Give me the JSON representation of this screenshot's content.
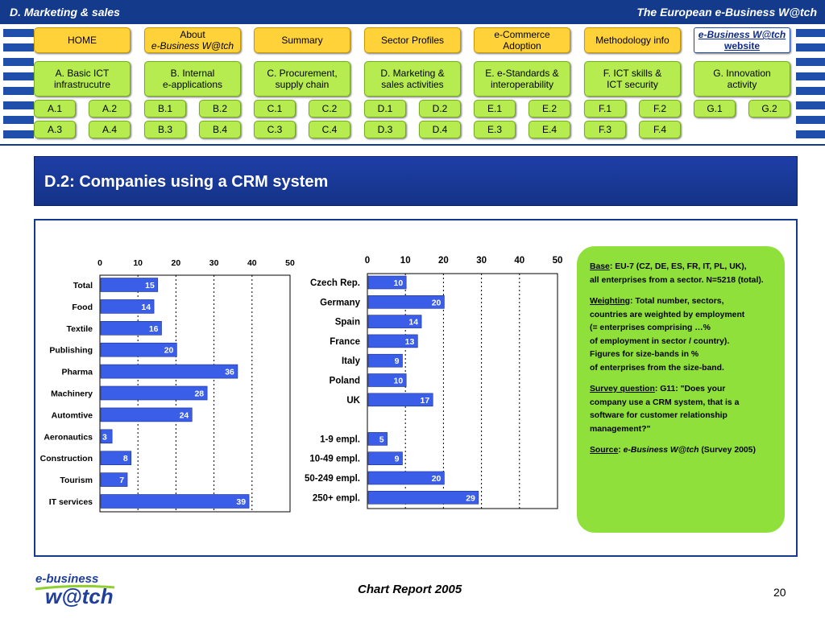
{
  "header": {
    "section": "D. Marketing  & sales",
    "site": "The European e-Business W@tch"
  },
  "nav": {
    "row1": [
      {
        "id": "home",
        "label": "HOME"
      },
      {
        "id": "about",
        "line1": "About",
        "line2": "e-Business W@tch"
      },
      {
        "id": "summary",
        "label": "Summary"
      },
      {
        "id": "sector",
        "label": "Sector Profiles"
      },
      {
        "id": "ecommerce",
        "label": "e-Commerce\nAdoption"
      },
      {
        "id": "method",
        "label": "Methodology info"
      },
      {
        "id": "website",
        "line1": "e-Business W@tch",
        "line2": "website"
      }
    ],
    "row2": [
      {
        "id": "a",
        "label": "A. Basic ICT\ninfrastrucutre"
      },
      {
        "id": "b",
        "label": "B. Internal\ne-applications"
      },
      {
        "id": "c",
        "label": "C. Procurement,\nsupply chain"
      },
      {
        "id": "d",
        "label": "D. Marketing &\nsales activities"
      },
      {
        "id": "e",
        "label": "E. e-Standards &\ninteroperability"
      },
      {
        "id": "f",
        "label": "F. ICT skills &\nICT security"
      },
      {
        "id": "g",
        "label": "G. Innovation\nactivity"
      }
    ],
    "row3": [
      "A.1",
      "A.2",
      "B.1",
      "B.2",
      "C.1",
      "C.2",
      "D.1",
      "D.2",
      "E.1",
      "E.2",
      "F.1",
      "F.2",
      "G.1",
      "G.2"
    ],
    "row4": [
      "A.3",
      "A.4",
      "B.3",
      "B.4",
      "C.3",
      "C.4",
      "D.3",
      "D.4",
      "E.3",
      "E.4",
      "F.3",
      "F.4"
    ]
  },
  "page_title": "D.2: Companies using a CRM system",
  "chart_data": [
    {
      "type": "bar",
      "orientation": "horizontal",
      "categories": [
        "Total",
        "Food",
        "Textile",
        "Publishing",
        "Pharma",
        "Machinery",
        "Automtive",
        "Aeronautics",
        "Construction",
        "Tourism",
        "IT services"
      ],
      "values": [
        15,
        14,
        16,
        20,
        36,
        28,
        24,
        3,
        8,
        7,
        39
      ],
      "xlim": [
        0,
        50
      ],
      "xticks": [
        0,
        10,
        20,
        30,
        40,
        50
      ],
      "grid": true,
      "bar_color": "#3a5ee8"
    },
    {
      "type": "bar",
      "orientation": "horizontal",
      "categories": [
        "Czech Rep.",
        "Germany",
        "Spain",
        "France",
        "Italy",
        "Poland",
        "UK",
        "",
        "1-9 empl.",
        "10-49 empl.",
        "50-249 empl.",
        "250+ empl."
      ],
      "values": [
        10,
        20,
        14,
        13,
        9,
        10,
        17,
        null,
        5,
        9,
        20,
        29
      ],
      "xlim": [
        0,
        50
      ],
      "xticks": [
        0,
        10,
        20,
        30,
        40,
        50
      ],
      "grid": true,
      "bar_color": "#3a5ee8"
    }
  ],
  "info": {
    "base_label": "Base",
    "base_text": ": EU-7 (CZ, DE, ES, FR, IT, PL, UK),",
    "base_text2": "all enterprises from a sector. N=5218 (total).",
    "weighting_label": "Weighting",
    "weighting_lines": [
      ": Total number, sectors,",
      "countries are weighted by employment",
      "(= enterprises comprising …%",
      "of employment in sector / country).",
      "Figures for size-bands in %",
      "of enterprises from the size-band."
    ],
    "survey_label": "Survey question",
    "survey_lines": [
      ": G11: \"Does your",
      "company use a CRM system, that is a",
      "software for customer relationship",
      "management?\""
    ],
    "source_label": "Source",
    "source_sep": ": ",
    "source_name": "e-Business W@tch",
    "source_text": " (Survey 2005)"
  },
  "footer": {
    "title": "Chart Report 2005",
    "page": "20",
    "logo_text1": "e-business",
    "logo_text2": "w@tch"
  },
  "colors": {
    "navy": "#143a8c",
    "yellow": "#ffd23a",
    "green": "#b6ec50",
    "infobox": "#8fe03b",
    "bar": "#3a5ee8"
  }
}
